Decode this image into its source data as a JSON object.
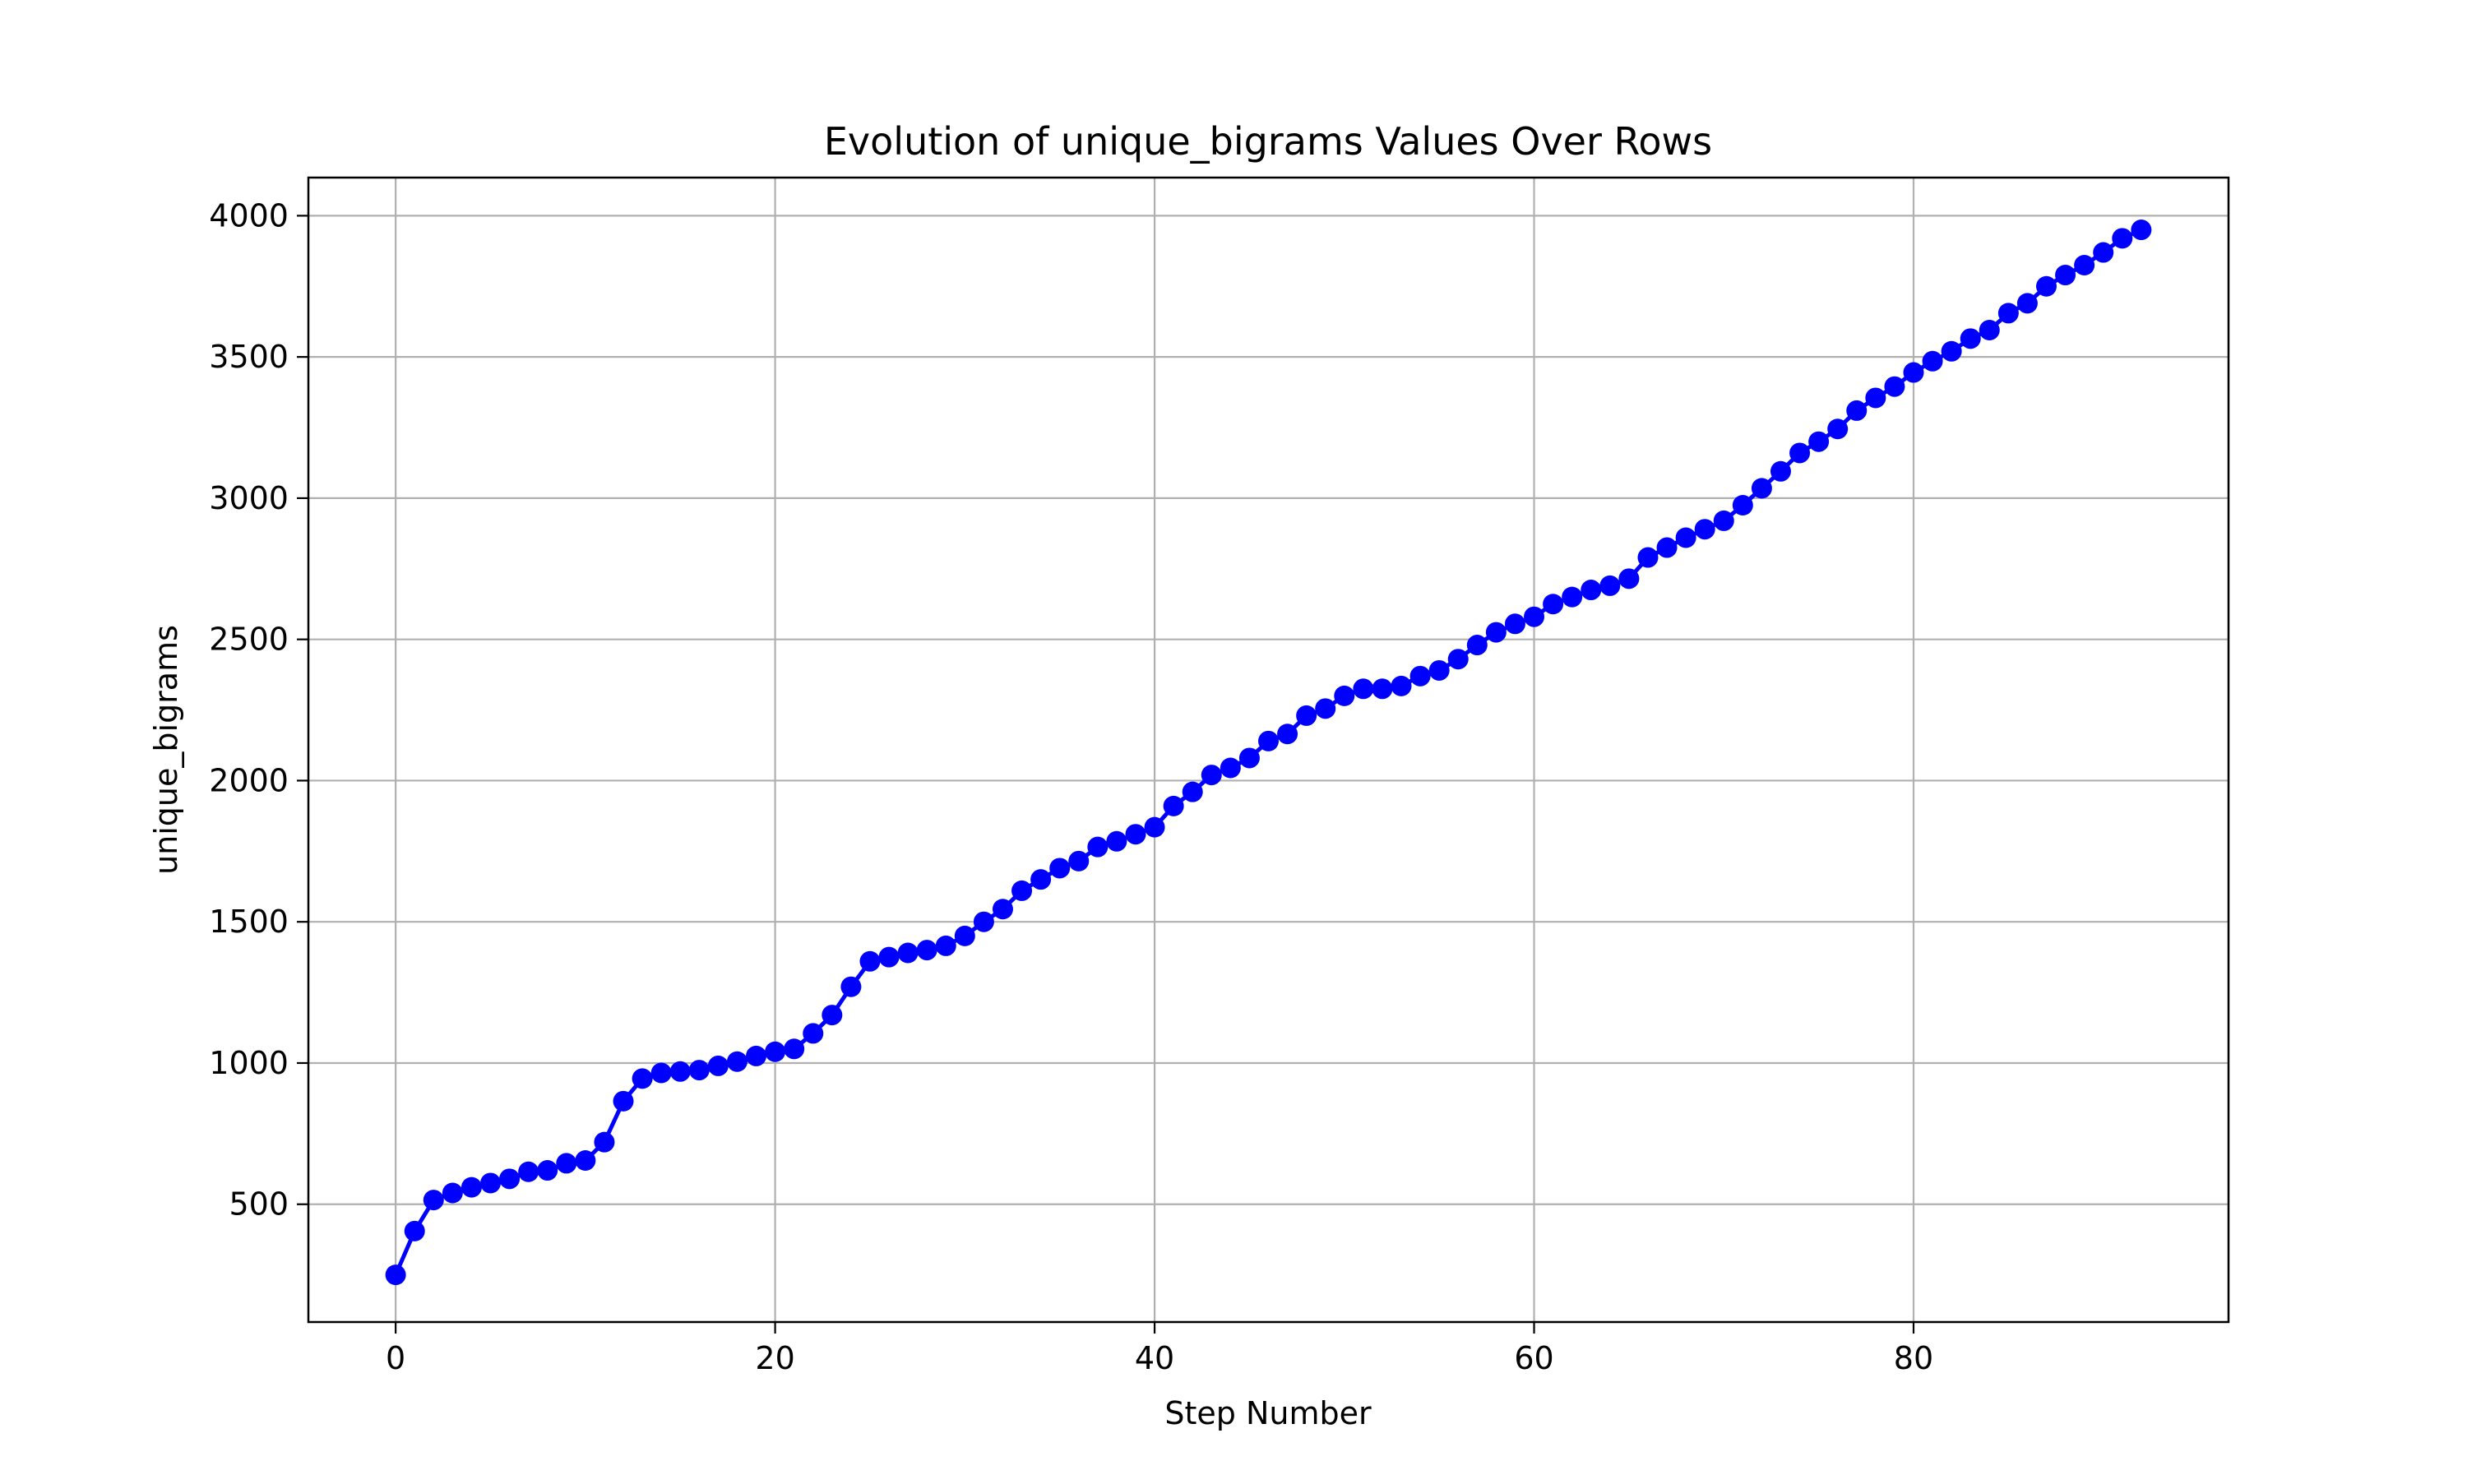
{
  "chart_data": {
    "type": "line",
    "title": "Evolution of unique_bigrams Values Over Rows",
    "xlabel": "Step Number",
    "ylabel": "unique_bigrams",
    "xlim": [
      -4.6,
      96.6
    ],
    "ylim": [
      83,
      4135
    ],
    "xticks": [
      0,
      20,
      40,
      60,
      80
    ],
    "yticks": [
      500,
      1000,
      1500,
      2000,
      2500,
      3000,
      3500,
      4000
    ],
    "grid": true,
    "legend": "none",
    "colors": {
      "series": "#0000ff",
      "grid": "#b0b0b0",
      "axes": "#000000"
    },
    "series": [
      {
        "marker": "circle",
        "x": [
          0,
          1,
          2,
          3,
          4,
          5,
          6,
          7,
          8,
          9,
          10,
          11,
          12,
          13,
          14,
          15,
          16,
          17,
          18,
          19,
          20,
          21,
          22,
          23,
          24,
          25,
          26,
          27,
          28,
          29,
          30,
          31,
          32,
          33,
          34,
          35,
          36,
          37,
          38,
          39,
          40,
          41,
          42,
          43,
          44,
          45,
          46,
          47,
          48,
          49,
          50,
          51,
          52,
          53,
          54,
          55,
          56,
          57,
          58,
          59,
          60,
          61,
          62,
          63,
          64,
          65,
          66,
          67,
          68,
          69,
          70,
          71,
          72,
          73,
          74,
          75,
          76,
          77,
          78,
          79,
          80,
          81,
          82,
          83,
          84,
          85,
          86,
          87,
          88,
          89,
          90,
          91,
          92
        ],
        "values": [
          250,
          405,
          515,
          540,
          560,
          575,
          590,
          615,
          620,
          645,
          655,
          720,
          865,
          945,
          965,
          970,
          975,
          990,
          1005,
          1025,
          1040,
          1050,
          1105,
          1170,
          1270,
          1360,
          1375,
          1390,
          1400,
          1415,
          1450,
          1500,
          1545,
          1610,
          1650,
          1690,
          1715,
          1765,
          1785,
          1810,
          1835,
          1910,
          1960,
          2020,
          2045,
          2080,
          2140,
          2165,
          2230,
          2255,
          2300,
          2325,
          2325,
          2335,
          2370,
          2390,
          2430,
          2480,
          2525,
          2555,
          2580,
          2625,
          2650,
          2675,
          2690,
          2715,
          2790,
          2825,
          2860,
          2890,
          2920,
          2975,
          3035,
          3095,
          3160,
          3200,
          3245,
          3310,
          3355,
          3395,
          3445,
          3485,
          3520,
          3565,
          3595,
          3655,
          3690,
          3750,
          3790,
          3825,
          3870,
          3920,
          3950
        ]
      }
    ]
  }
}
